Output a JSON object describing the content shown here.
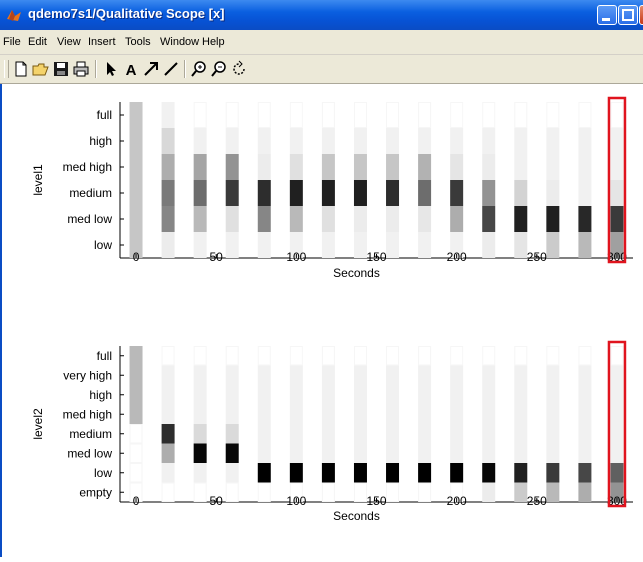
{
  "window": {
    "title": "qdemo7s1/Qualitative Scope [x]"
  },
  "menu": [
    "File",
    "Edit",
    "View",
    "Insert",
    "Tools",
    "Window",
    "Help"
  ],
  "toolbar": {
    "icons": [
      "new-file-icon",
      "open-folder-icon",
      "save-icon",
      "print-icon",
      "arrow-pointer-icon",
      "text-insert-icon",
      "arrow-insert-icon",
      "line-insert-icon",
      "zoom-in-icon",
      "zoom-out-icon",
      "rotate-icon"
    ]
  },
  "colors": {
    "highlight": "#e0141e"
  },
  "chart_data": [
    {
      "type": "heatmap",
      "ylabel": "level1",
      "xlabel": "Seconds",
      "categories": [
        "full",
        "high",
        "med high",
        "medium",
        "med low",
        "low"
      ],
      "x": [
        0,
        20,
        40,
        60,
        80,
        100,
        120,
        140,
        160,
        180,
        200,
        220,
        240,
        260,
        280,
        300
      ],
      "xticks": [
        0,
        50,
        100,
        150,
        200,
        250,
        300
      ],
      "xlim": [
        -10,
        310
      ],
      "values": [
        [
          0.2,
          0.03,
          0.0,
          0.0,
          0.0,
          0.0,
          0.0,
          0.0,
          0.0,
          0.0,
          0.0,
          0.0,
          0.0,
          0.0,
          0.0,
          0.0
        ],
        [
          0.2,
          0.13,
          0.03,
          0.03,
          0.03,
          0.03,
          0.03,
          0.03,
          0.03,
          0.03,
          0.03,
          0.03,
          0.03,
          0.03,
          0.03,
          0.03
        ],
        [
          0.2,
          0.3,
          0.33,
          0.4,
          0.05,
          0.1,
          0.2,
          0.2,
          0.2,
          0.28,
          0.08,
          0.05,
          0.03,
          0.03,
          0.03,
          0.03
        ],
        [
          0.2,
          0.5,
          0.55,
          0.75,
          0.8,
          0.85,
          0.85,
          0.85,
          0.8,
          0.55,
          0.75,
          0.4,
          0.15,
          0.05,
          0.03,
          0.08
        ],
        [
          0.2,
          0.45,
          0.25,
          0.1,
          0.45,
          0.25,
          0.1,
          0.05,
          0.05,
          0.07,
          0.3,
          0.7,
          0.85,
          0.85,
          0.82,
          0.75
        ],
        [
          0.2,
          0.05,
          0.03,
          0.03,
          0.03,
          0.03,
          0.03,
          0.03,
          0.03,
          0.03,
          0.03,
          0.05,
          0.08,
          0.18,
          0.25,
          0.35
        ]
      ],
      "highlight_x": 300
    },
    {
      "type": "heatmap",
      "ylabel": "level2",
      "xlabel": "Seconds",
      "categories": [
        "full",
        "very high",
        "high",
        "med high",
        "medium",
        "med low",
        "low",
        "empty"
      ],
      "x": [
        0,
        20,
        40,
        60,
        80,
        100,
        120,
        140,
        160,
        180,
        200,
        220,
        240,
        260,
        280,
        300
      ],
      "xticks": [
        0,
        50,
        100,
        150,
        200,
        250,
        300
      ],
      "xlim": [
        -10,
        310
      ],
      "values": [
        [
          0.25,
          0.0,
          0.0,
          0.0,
          0.0,
          0.0,
          0.0,
          0.0,
          0.0,
          0.0,
          0.0,
          0.0,
          0.0,
          0.0,
          0.0,
          0.0
        ],
        [
          0.25,
          0.03,
          0.03,
          0.03,
          0.03,
          0.03,
          0.03,
          0.03,
          0.03,
          0.03,
          0.03,
          0.03,
          0.03,
          0.03,
          0.03,
          0.03
        ],
        [
          0.25,
          0.03,
          0.03,
          0.03,
          0.03,
          0.03,
          0.03,
          0.03,
          0.03,
          0.03,
          0.03,
          0.03,
          0.03,
          0.03,
          0.03,
          0.03
        ],
        [
          0.25,
          0.03,
          0.03,
          0.03,
          0.03,
          0.03,
          0.03,
          0.03,
          0.03,
          0.03,
          0.03,
          0.03,
          0.03,
          0.03,
          0.03,
          0.03
        ],
        [
          0.0,
          0.8,
          0.12,
          0.12,
          0.03,
          0.03,
          0.03,
          0.03,
          0.03,
          0.03,
          0.03,
          0.03,
          0.03,
          0.03,
          0.03,
          0.03
        ],
        [
          0.0,
          0.3,
          0.95,
          0.95,
          0.03,
          0.03,
          0.03,
          0.03,
          0.03,
          0.03,
          0.03,
          0.03,
          0.03,
          0.03,
          0.03,
          0.03
        ],
        [
          0.0,
          0.03,
          0.03,
          0.03,
          1.0,
          1.0,
          1.0,
          1.0,
          1.0,
          1.0,
          1.0,
          0.95,
          0.85,
          0.75,
          0.7,
          0.6
        ],
        [
          0.0,
          0.0,
          0.0,
          0.0,
          0.0,
          0.0,
          0.0,
          0.0,
          0.0,
          0.0,
          0.0,
          0.05,
          0.18,
          0.25,
          0.3,
          0.4
        ]
      ],
      "highlight_x": 300
    }
  ]
}
